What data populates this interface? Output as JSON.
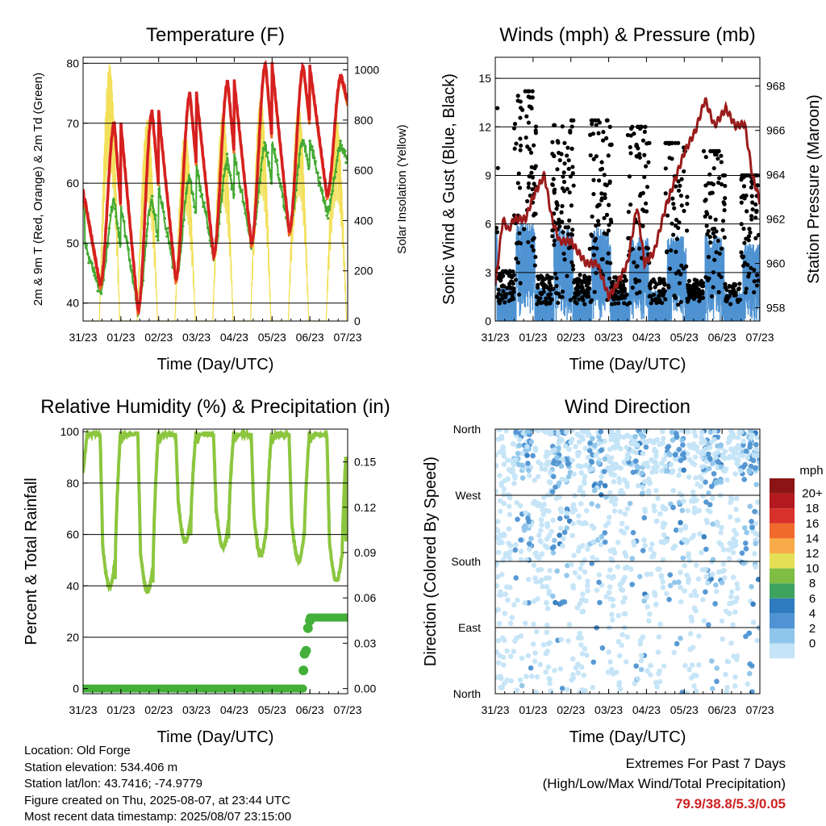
{
  "colors": {
    "temp2m": "#d62020",
    "temp9m": "#ee6a1e",
    "dewpoint": "#44aa33",
    "solar": "#f2e05a",
    "wind": "#4f93d2",
    "gust": "#000000",
    "pressure": "#9b1c1c",
    "rh": "#8cc63f",
    "precip": "#44b03a",
    "extremes": "#cc2222"
  },
  "time_ticks": [
    "31/23",
    "01/23",
    "02/23",
    "03/23",
    "04/23",
    "05/23",
    "06/23",
    "07/23"
  ],
  "charts": {
    "temperature": {
      "title": "Temperature (F)",
      "xlabel": "Time (Day/UTC)",
      "ylabel": "2m & 9m T (Red, Orange) & 2m Td (Green)",
      "y2label": "Solar Insolation (Yellow)"
    },
    "winds": {
      "title": "Winds (mph) & Pressure (mb)",
      "xlabel": "Time (Day/UTC)",
      "ylabel": "Sonic Wind & Gust (Blue, Black)",
      "y2label": "Station Pressure (Maroon)"
    },
    "humidity": {
      "title": "Relative Humidity (%) & Precipitation (in)",
      "xlabel": "Time (Day/UTC)",
      "ylabel": "Percent & Total Rainfall"
    },
    "direction": {
      "title": "Wind Direction",
      "xlabel": "Time (Day/UTC)",
      "ylabel": "Direction (Colored By Speed)"
    }
  },
  "chart_data": [
    {
      "type": "line",
      "title": "Temperature (F)",
      "xlabel": "Time (Day/UTC)",
      "ylabel": "2m & 9m T (Red, Orange) & 2m Td (Green)",
      "y2label": "Solar Insolation (Yellow)",
      "x": [
        "31/23",
        "01/23",
        "02/23",
        "03/23",
        "04/23",
        "05/23",
        "06/23",
        "07/23"
      ],
      "ylim": [
        37,
        81
      ],
      "y_ticks": [
        40,
        50,
        60,
        70,
        80
      ],
      "y2lim": [
        0,
        1050
      ],
      "y2_ticks": [
        0,
        200,
        400,
        600,
        800,
        1000
      ],
      "grid": true,
      "daily_extremes": [
        {
          "day": "31/23-01/23",
          "t2m_max": 70,
          "t2m_min": 43,
          "td_min": 42
        },
        {
          "day": "01/23-02/23",
          "t2m_max": 72,
          "t2m_min": 38.8,
          "td_min": 39
        },
        {
          "day": "02/23-03/23",
          "t2m_max": 75,
          "t2m_min": 44,
          "td_min": 44
        },
        {
          "day": "03/23-04/23",
          "t2m_max": 77,
          "t2m_min": 48,
          "td_min": 48
        },
        {
          "day": "04/23-05/23",
          "t2m_max": 79.9,
          "t2m_min": 50,
          "td_min": 50
        },
        {
          "day": "05/23-06/23",
          "t2m_max": 79.5,
          "t2m_min": 52,
          "td_min": 52
        },
        {
          "day": "06/23-07/23",
          "t2m_max": 78,
          "t2m_min": 58,
          "td_min": 55
        }
      ],
      "solar_daily_peak": [
        1030,
        810,
        760,
        840,
        900,
        870,
        820
      ]
    },
    {
      "type": "scatter",
      "title": "Winds (mph) & Pressure (mb)",
      "xlabel": "Time (Day/UTC)",
      "ylabel": "Sonic Wind & Gust (Blue, Black)",
      "y2label": "Station Pressure (Maroon)",
      "x": [
        "31/23",
        "01/23",
        "02/23",
        "03/23",
        "04/23",
        "05/23",
        "06/23",
        "07/23"
      ],
      "ylim": [
        0,
        16.3
      ],
      "y_ticks": [
        0,
        3,
        6,
        9,
        12,
        15
      ],
      "y2lim": [
        957.4,
        969.3
      ],
      "y2_ticks": [
        958,
        960,
        962,
        964,
        966,
        968
      ],
      "grid": true,
      "daily_peak_gust": [
        14.2,
        12.1,
        12.4,
        12.0,
        11.0,
        10.5,
        9.0
      ],
      "daily_peak_wind": [
        5.3,
        5.0,
        5.0,
        4.5,
        4.5,
        4.5,
        4.0
      ],
      "pressure": [
        {
          "x": 0.0,
          "y": 959
        },
        {
          "x": 0.1,
          "y": 960.5
        },
        {
          "x": 0.2,
          "y": 962
        },
        {
          "x": 0.35,
          "y": 961.5
        },
        {
          "x": 0.5,
          "y": 962
        },
        {
          "x": 0.8,
          "y": 962
        },
        {
          "x": 1.0,
          "y": 963
        },
        {
          "x": 1.3,
          "y": 964
        },
        {
          "x": 1.5,
          "y": 962
        },
        {
          "x": 1.7,
          "y": 961
        },
        {
          "x": 2.0,
          "y": 961
        },
        {
          "x": 2.4,
          "y": 960
        },
        {
          "x": 2.7,
          "y": 960
        },
        {
          "x": 3.0,
          "y": 958.5
        },
        {
          "x": 3.2,
          "y": 959
        },
        {
          "x": 3.5,
          "y": 960
        },
        {
          "x": 3.75,
          "y": 962.6
        },
        {
          "x": 3.95,
          "y": 960
        },
        {
          "x": 4.2,
          "y": 960.5
        },
        {
          "x": 4.5,
          "y": 962.5
        },
        {
          "x": 4.8,
          "y": 964
        },
        {
          "x": 5.0,
          "y": 965
        },
        {
          "x": 5.3,
          "y": 966
        },
        {
          "x": 5.55,
          "y": 967.4
        },
        {
          "x": 5.8,
          "y": 966.2
        },
        {
          "x": 6.1,
          "y": 967
        },
        {
          "x": 6.35,
          "y": 966.2
        },
        {
          "x": 6.6,
          "y": 966.3
        },
        {
          "x": 6.8,
          "y": 964
        },
        {
          "x": 7.0,
          "y": 962.8
        }
      ]
    },
    {
      "type": "line",
      "title": "Relative Humidity (%) & Precipitation (in)",
      "xlabel": "Time (Day/UTC)",
      "ylabel": "Percent & Total Rainfall",
      "x": [
        "31/23",
        "01/23",
        "02/23",
        "03/23",
        "04/23",
        "05/23",
        "06/23",
        "07/23"
      ],
      "ylim": [
        -2,
        101
      ],
      "y_ticks": [
        0,
        20,
        40,
        60,
        80,
        100
      ],
      "y2lim": [
        -0.0034,
        0.1717
      ],
      "y2_ticks": [
        "0.00",
        "0.03",
        "0.06",
        "0.09",
        "0.12",
        "0.15"
      ],
      "grid": true,
      "rh_daily_min": [
        40,
        38,
        57,
        55,
        52,
        50,
        42
      ],
      "rh_daily_max": [
        99,
        99,
        99,
        99,
        99,
        99,
        99
      ],
      "precip_total": [
        {
          "x": 0.0,
          "y": 0.0
        },
        {
          "x": 5.8,
          "y": 0.0
        },
        {
          "x": 5.85,
          "y": 0.02
        },
        {
          "x": 5.9,
          "y": 0.04
        },
        {
          "x": 6.1,
          "y": 0.047
        },
        {
          "x": 7.0,
          "y": 0.047
        }
      ]
    },
    {
      "type": "scatter",
      "title": "Wind Direction",
      "xlabel": "Time (Day/UTC)",
      "ylabel": "Direction (Colored By Speed)",
      "x": [
        "31/23",
        "01/23",
        "02/23",
        "03/23",
        "04/23",
        "05/23",
        "06/23",
        "07/23"
      ],
      "y_ticks": [
        "North",
        "East",
        "South",
        "West",
        "North"
      ],
      "grid": true,
      "colorbar": {
        "units": "mph",
        "labels": [
          "0",
          "2",
          "4",
          "6",
          "8",
          "10",
          "12",
          "14",
          "16",
          "18",
          "20+"
        ],
        "colors": [
          "#c4e4f7",
          "#8ec5ea",
          "#4f93d2",
          "#2f7bbf",
          "#3ea25f",
          "#80bd45",
          "#e5df56",
          "#f8ab48",
          "#f06a2c",
          "#d8302a",
          "#b3191e",
          "#8b1414"
        ]
      }
    }
  ],
  "info": {
    "location": "Location: Old Forge",
    "elevation": "Station elevation: 534.406 m",
    "latlon": "Station lat/lon: 43.7416; -74.9779",
    "created": "Figure created on Thu, 2025-08-07, at 23:44 UTC",
    "recent": "Most recent data timestamp: 2025/08/07 23:15:00"
  },
  "extremes": {
    "title": "Extremes For Past 7 Days",
    "subtitle": "(High/Low/Max Wind/Total Precipitation)",
    "values": "79.9/38.8/5.3/0.05"
  }
}
